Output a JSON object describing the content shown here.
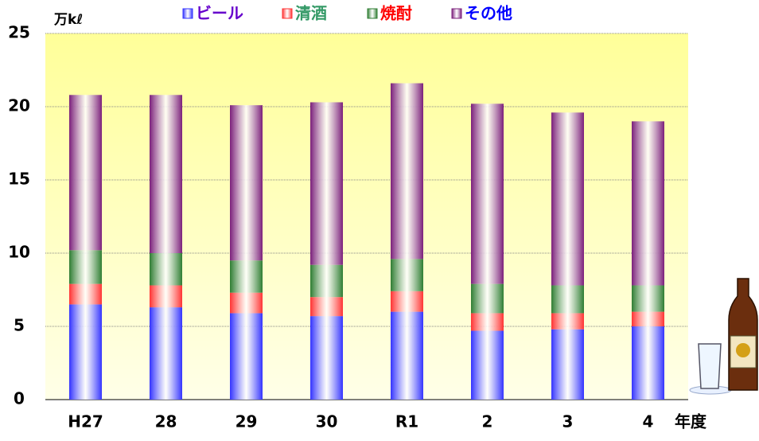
{
  "chart_data": {
    "type": "stacked-bar",
    "unit_label": "万kℓ",
    "x_label": "年度",
    "categories": [
      "H27",
      "28",
      "29",
      "30",
      "R1",
      "2",
      "3",
      "4"
    ],
    "series": [
      {
        "name": "ビール",
        "color": "#3333ff",
        "label_color": "#6600cc",
        "values": [
          6.5,
          6.3,
          5.9,
          5.7,
          6.0,
          4.7,
          4.8,
          5.0
        ]
      },
      {
        "name": "清酒",
        "color": "#ff3333",
        "label_color": "#339966",
        "values": [
          1.4,
          1.5,
          1.4,
          1.3,
          1.4,
          1.2,
          1.1,
          1.0
        ]
      },
      {
        "name": "焼酎",
        "color": "#2e7d32",
        "label_color": "#ff0000",
        "values": [
          2.3,
          2.2,
          2.2,
          2.2,
          2.2,
          2.0,
          1.9,
          1.8
        ]
      },
      {
        "name": "その他",
        "color": "#7b1f7b",
        "label_color": "#0000ff",
        "values": [
          10.6,
          10.8,
          10.6,
          11.1,
          12.0,
          12.3,
          11.8,
          11.2
        ]
      }
    ],
    "ylim": [
      0,
      25
    ],
    "yticks": [
      0,
      5,
      10,
      15,
      20,
      25
    ],
    "grid": true
  }
}
